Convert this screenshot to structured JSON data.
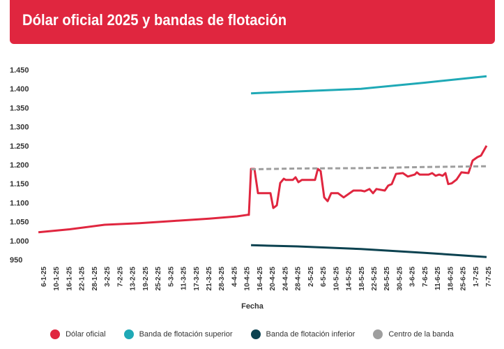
{
  "chart_data": {
    "type": "line",
    "title": "Dólar oficial 2025 y bandas de flotación",
    "xlabel": "Fecha",
    "ylabel": "",
    "ylim": [
      950,
      1450
    ],
    "yticks": [
      {
        "v": 1450,
        "label": "1.450"
      },
      {
        "v": 1400,
        "label": "1.400"
      },
      {
        "v": 1350,
        "label": "1.350"
      },
      {
        "v": 1300,
        "label": "1.300"
      },
      {
        "v": 1250,
        "label": "1.250"
      },
      {
        "v": 1200,
        "label": "1.200"
      },
      {
        "v": 1150,
        "label": "1.150"
      },
      {
        "v": 1100,
        "label": "1.100"
      },
      {
        "v": 1050,
        "label": "1.050"
      },
      {
        "v": 1000,
        "label": "1.000"
      },
      {
        "v": 950,
        "label": "950"
      }
    ],
    "categories": [
      "6-1-25",
      "10-1-25",
      "16-1-25",
      "22-1-25",
      "28-1-25",
      "3-2-25",
      "7-2-25",
      "13-2-25",
      "19-2-25",
      "25-2-25",
      "5-3-25",
      "11-3-25",
      "17-3-25",
      "21-3-25",
      "28-3-25",
      "4-4-25",
      "10-4-25",
      "16-4-25",
      "20-4-25",
      "24-4-25",
      "28-4-25",
      "2-5-25",
      "6-5-25",
      "10-5-25",
      "14-5-25",
      "18-5-25",
      "22-5-25",
      "26-5-25",
      "30-5-25",
      "3-6-25",
      "7-6-25",
      "11-6-25",
      "18-6-25",
      "25-6-25",
      "1-7-25",
      "7-7-25"
    ],
    "grid": false,
    "legend_position": "bottom",
    "series": [
      {
        "name": "Dólar oficial",
        "color": "#e0263f",
        "dashed": false,
        "points": [
          [
            -0.38,
            1022
          ],
          [
            2.08,
            1030
          ],
          [
            4.83,
            1042
          ],
          [
            7.57,
            1046
          ],
          [
            10.31,
            1052
          ],
          [
            13.06,
            1058
          ],
          [
            15.25,
            1064
          ],
          [
            16.07,
            1068
          ],
          [
            16.18,
            1068
          ],
          [
            16.35,
            1189
          ],
          [
            16.62,
            1189
          ],
          [
            16.9,
            1125
          ],
          [
            17.88,
            1125
          ],
          [
            18.1,
            1086
          ],
          [
            18.38,
            1093
          ],
          [
            18.65,
            1152
          ],
          [
            18.93,
            1163
          ],
          [
            19.09,
            1160
          ],
          [
            19.64,
            1160
          ],
          [
            19.86,
            1167
          ],
          [
            20.08,
            1154
          ],
          [
            20.35,
            1160
          ],
          [
            21.39,
            1160
          ],
          [
            21.61,
            1189
          ],
          [
            21.83,
            1183
          ],
          [
            22.11,
            1114
          ],
          [
            22.38,
            1104
          ],
          [
            22.66,
            1125
          ],
          [
            23.2,
            1125
          ],
          [
            23.64,
            1114
          ],
          [
            24.41,
            1132
          ],
          [
            25.01,
            1132
          ],
          [
            25.29,
            1130
          ],
          [
            25.67,
            1136
          ],
          [
            25.95,
            1125
          ],
          [
            26.22,
            1136
          ],
          [
            26.88,
            1132
          ],
          [
            27.15,
            1145
          ],
          [
            27.43,
            1149
          ],
          [
            27.76,
            1176
          ],
          [
            28.3,
            1178
          ],
          [
            28.69,
            1169
          ],
          [
            29.24,
            1174
          ],
          [
            29.4,
            1180
          ],
          [
            29.62,
            1174
          ],
          [
            30.33,
            1174
          ],
          [
            30.61,
            1178
          ],
          [
            30.88,
            1171
          ],
          [
            31.16,
            1174
          ],
          [
            31.43,
            1171
          ],
          [
            31.65,
            1178
          ],
          [
            31.87,
            1149
          ],
          [
            32.14,
            1151
          ],
          [
            32.53,
            1161
          ],
          [
            32.91,
            1180
          ],
          [
            33.46,
            1178
          ],
          [
            33.79,
            1211
          ],
          [
            34.17,
            1220
          ],
          [
            34.45,
            1224
          ],
          [
            34.89,
            1250
          ]
        ]
      },
      {
        "name": "Banda de flotación superior",
        "color": "#1fa9b6",
        "dashed": false,
        "points": [
          [
            16.35,
            1388
          ],
          [
            20,
            1393
          ],
          [
            25,
            1400
          ],
          [
            30,
            1416
          ],
          [
            34.89,
            1433
          ]
        ]
      },
      {
        "name": "Banda de flotación inferior",
        "color": "#0c4250",
        "dashed": false,
        "points": [
          [
            16.35,
            988
          ],
          [
            20,
            985
          ],
          [
            25,
            978
          ],
          [
            30,
            968
          ],
          [
            34.89,
            957
          ]
        ]
      },
      {
        "name": "Centro de la banda",
        "color": "#9e9e9e",
        "dashed": true,
        "points": [
          [
            16.35,
            1188
          ],
          [
            20,
            1190
          ],
          [
            25,
            1191
          ],
          [
            30,
            1194
          ],
          [
            34.89,
            1196
          ]
        ]
      }
    ]
  }
}
